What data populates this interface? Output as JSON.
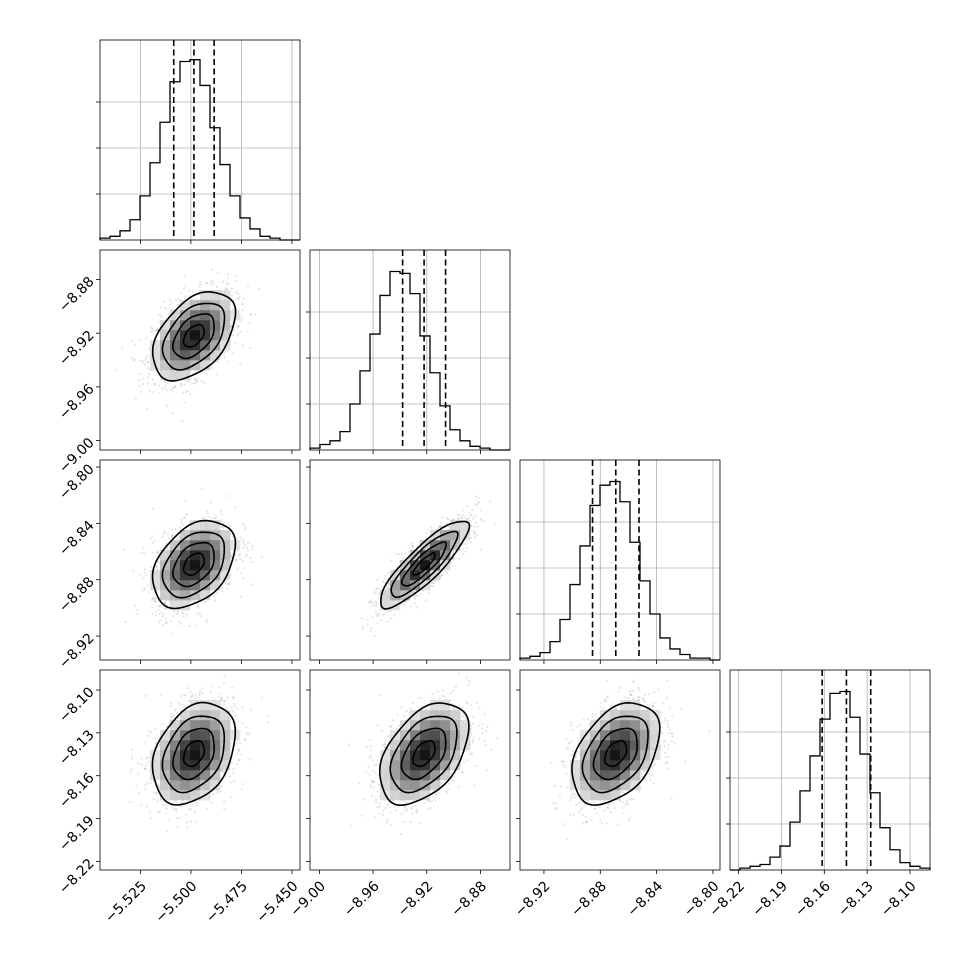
{
  "chart_data": {
    "type": "corner",
    "params": [
      {
        "center": -5.4985,
        "sigma": 0.0102,
        "range": [
          -5.545,
          -5.446
        ],
        "ticks": [
          -5.525,
          -5.5,
          -5.475,
          -5.45
        ],
        "tick_labels": [
          "−5.525",
          "−5.500",
          "−5.475",
          "−5.450"
        ],
        "quantiles": [
          -5.5085,
          -5.4985,
          -5.4885
        ],
        "hist_counts": [
          1,
          2,
          5,
          11,
          24,
          42,
          64,
          86,
          97,
          98,
          84,
          61,
          41,
          24,
          12,
          6,
          2,
          1,
          0,
          0
        ]
      },
      {
        "center": -8.922,
        "sigma": 0.0165,
        "range": [
          -9.007,
          -8.858
        ],
        "ticks": [
          -9.0,
          -8.96,
          -8.92,
          -8.88
        ],
        "tick_labels": [
          "−9.00",
          "−8.96",
          "−8.92",
          "−8.88"
        ],
        "quantiles": [
          -8.938,
          -8.922,
          -8.906
        ],
        "hist_counts": [
          1,
          3,
          5,
          10,
          25,
          43,
          63,
          84,
          97,
          96,
          85,
          62,
          42,
          24,
          11,
          5,
          2,
          1,
          0,
          0
        ]
      },
      {
        "center": -8.869,
        "sigma": 0.0155,
        "range": [
          -8.937,
          -8.795
        ],
        "ticks": [
          -8.92,
          -8.88,
          -8.84,
          -8.8
        ],
        "tick_labels": [
          "−8.92",
          "−8.88",
          "−8.84",
          "−8.80"
        ],
        "quantiles": [
          -8.8855,
          -8.869,
          -8.8525
        ],
        "hist_counts": [
          1,
          2,
          4,
          10,
          22,
          41,
          62,
          84,
          95,
          97,
          86,
          64,
          43,
          25,
          12,
          6,
          3,
          1,
          1,
          0
        ]
      },
      {
        "center": -8.1445,
        "sigma": 0.0178,
        "range": [
          -8.226,
          -8.086
        ],
        "ticks": [
          -8.22,
          -8.19,
          -8.16,
          -8.13,
          -8.1
        ],
        "tick_labels": [
          "−8.22",
          "−8.19",
          "−8.16",
          "−8.13",
          "−8.10"
        ],
        "quantiles": [
          -8.1615,
          -8.1445,
          -8.1275
        ],
        "hist_counts": [
          0,
          1,
          2,
          3,
          7,
          13,
          26,
          43,
          62,
          82,
          96,
          97,
          83,
          63,
          42,
          23,
          11,
          4,
          2,
          1
        ]
      }
    ],
    "correlations": {
      "1-0": 0.45,
      "2-0": 0.38,
      "2-1": 0.86,
      "3-0": 0.32,
      "3-1": 0.45,
      "3-2": 0.4
    },
    "contour_levels_sigma": [
      0.5,
      1.0,
      1.5,
      2.0
    ],
    "grid": true,
    "histograms_on_diagonal": true,
    "quantiles_dashed": true
  },
  "colors": {
    "contour": "#000000",
    "scatter": "#888888",
    "density_dark": "#000000"
  }
}
